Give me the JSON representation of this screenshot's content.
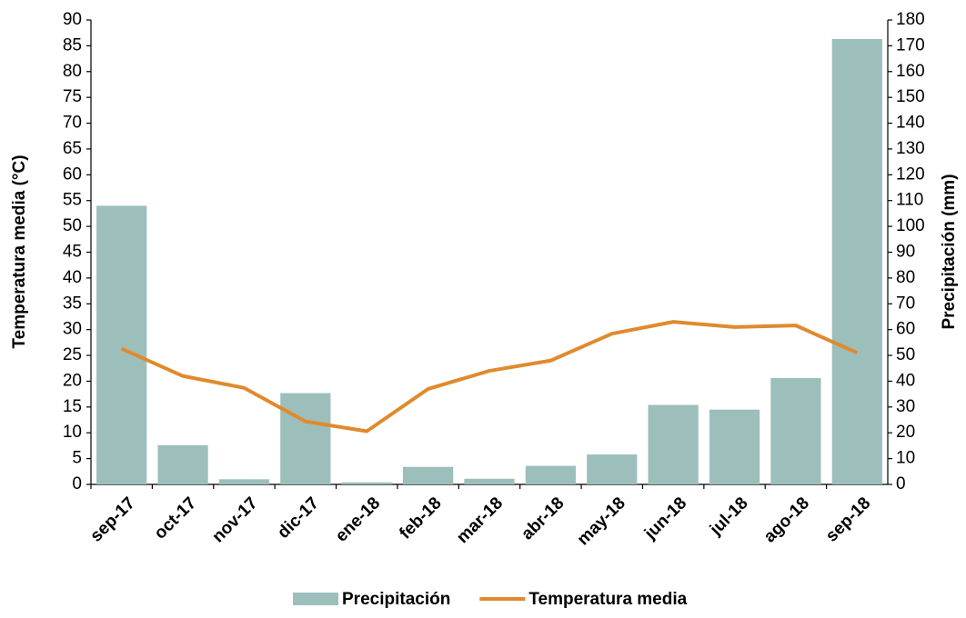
{
  "chart_data": {
    "type": "bar-line",
    "categories": [
      "sep-17",
      "oct-17",
      "nov-17",
      "dic-17",
      "ene-18",
      "feb-18",
      "mar-18",
      "abr-18",
      "may-18",
      "jun-18",
      "jul-18",
      "ago-18",
      "sep-18"
    ],
    "series": [
      {
        "name": "Precipitación",
        "type": "bar",
        "axis": "y2",
        "color": "#9dbfbc",
        "values": [
          108,
          15.2,
          2,
          35.4,
          0.8,
          6.8,
          2.2,
          7.2,
          11.6,
          30.8,
          29,
          41.2,
          172.6
        ]
      },
      {
        "name": "Temperatura media",
        "type": "line",
        "axis": "y",
        "color": "#e08a2e",
        "values": [
          26.3,
          21,
          18.7,
          12.2,
          10.3,
          18.5,
          22,
          24,
          29.2,
          31.5,
          30.5,
          30.8,
          25.5
        ]
      }
    ],
    "ylabel": "Temperatura media  (°C)",
    "y2label": "Precipitación (mm)",
    "ylim": [
      0,
      90
    ],
    "yticks": [
      0,
      5,
      10,
      15,
      20,
      25,
      30,
      35,
      40,
      45,
      50,
      55,
      60,
      65,
      70,
      75,
      80,
      85,
      90
    ],
    "y2lim": [
      0,
      180
    ],
    "y2ticks": [
      0,
      10,
      20,
      30,
      40,
      50,
      60,
      70,
      80,
      90,
      100,
      110,
      120,
      130,
      140,
      150,
      160,
      170,
      180
    ],
    "legend": "bottom"
  }
}
